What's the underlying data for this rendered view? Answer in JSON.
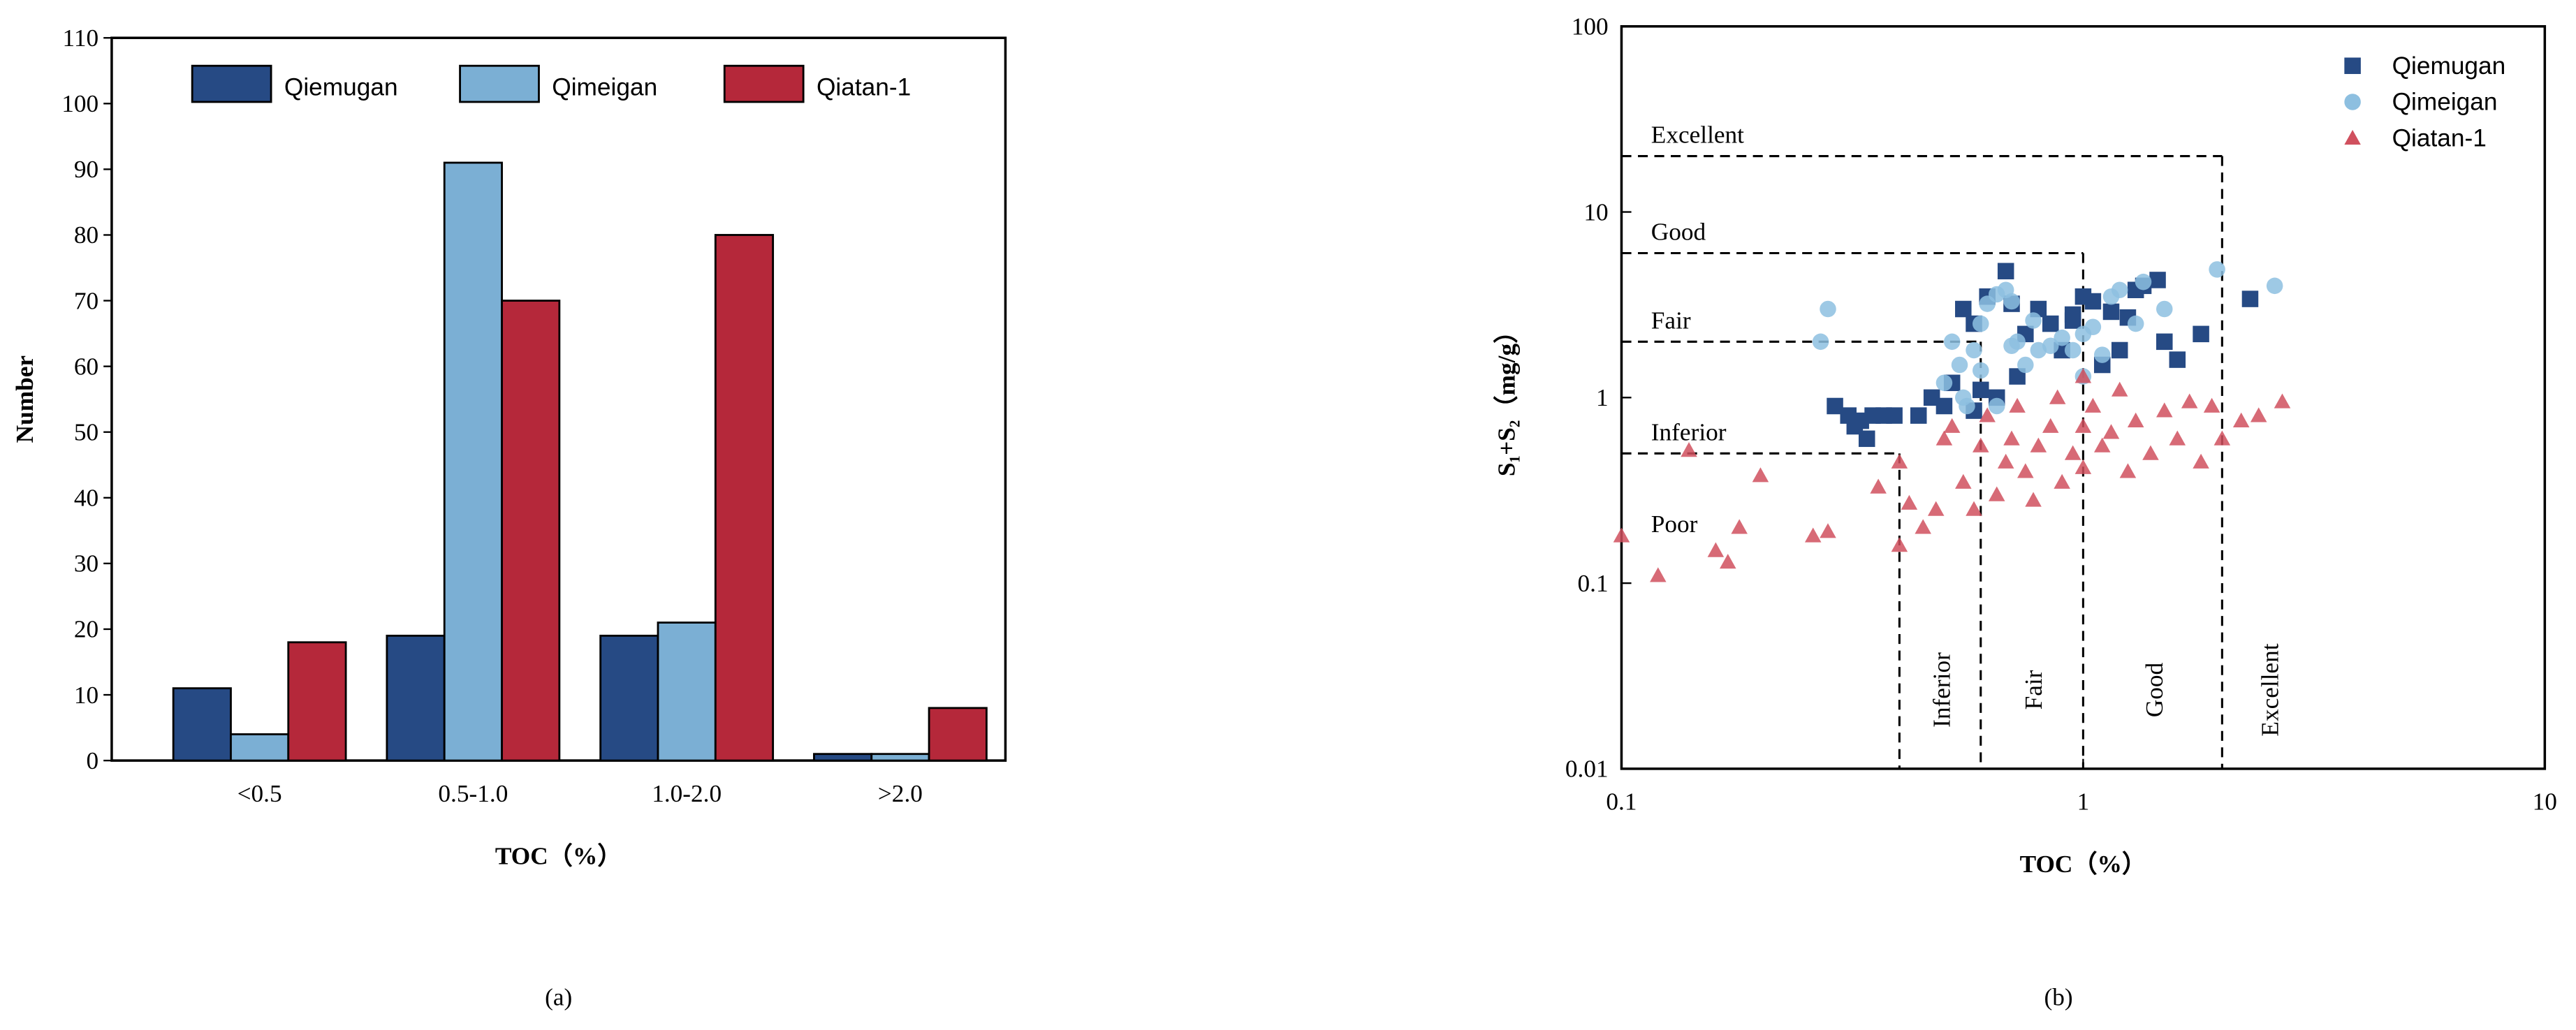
{
  "chart_data": [
    {
      "type": "bar",
      "panel_label": "(a)",
      "ylabel": "Number",
      "xlabel": "TOC（%）",
      "categories": [
        "<0.5",
        "0.5-1.0",
        "1.0-2.0",
        ">2.0"
      ],
      "series": [
        {
          "name": "Qiemugan",
          "color": "#264a84",
          "values": [
            11,
            19,
            19,
            1
          ]
        },
        {
          "name": "Qimeigan",
          "color": "#7bafd4",
          "values": [
            4,
            91,
            21,
            1
          ]
        },
        {
          "name": "Qiatan-1",
          "color": "#b5283a",
          "values": [
            18,
            70,
            80,
            8
          ]
        }
      ],
      "ylim": [
        0,
        110
      ],
      "yticks": [
        0,
        10,
        20,
        30,
        40,
        50,
        60,
        70,
        80,
        90,
        100,
        110
      ],
      "grid": false,
      "legend": "top"
    },
    {
      "type": "scatter",
      "panel_label": "(b)",
      "ylabel": "S₁+S₂（mg/g）",
      "xlabel": "TOC（%）",
      "log_x": true,
      "log_y": true,
      "xlim": [
        0.1,
        10
      ],
      "ylim": [
        0.01,
        100
      ],
      "xticks": [
        0.1,
        1,
        10
      ],
      "yticks": [
        0.01,
        0.1,
        1,
        10,
        100
      ],
      "grid": false,
      "legend": "upper right",
      "thresholds": [
        {
          "x": 0.4,
          "y": 0.5
        },
        {
          "x": 0.6,
          "y": 2
        },
        {
          "x": 1,
          "y": 6
        },
        {
          "x": 2,
          "y": 20
        }
      ],
      "y_class_labels": [
        "Poor",
        "Inferior",
        "Fair",
        "Good",
        "Excellent"
      ],
      "x_class_labels": [
        "Inferior",
        "Fair",
        "Good",
        "Excellent"
      ],
      "series": [
        {
          "name": "Qiemugan",
          "color": "#264a84",
          "marker": "square",
          "x": [
            0.29,
            0.31,
            0.32,
            0.33,
            0.34,
            0.35,
            0.37,
            0.39,
            0.44,
            0.47,
            0.5,
            0.52,
            0.55,
            0.58,
            0.6,
            0.62,
            0.65,
            0.68,
            0.7,
            0.72,
            0.75,
            0.8,
            0.85,
            0.9,
            0.95,
            1.0,
            1.05,
            1.1,
            1.15,
            1.2,
            1.3,
            1.35,
            1.45,
            1.5,
            1.6,
            1.8,
            2.3,
            1.25,
            0.95,
            0.58
          ],
          "values": [
            0.9,
            0.8,
            0.7,
            0.75,
            0.6,
            0.8,
            0.8,
            0.8,
            0.8,
            1.0,
            0.9,
            1.2,
            3.0,
            2.5,
            1.1,
            3.5,
            1.0,
            4.8,
            3.2,
            1.3,
            2.2,
            3.0,
            2.5,
            1.8,
            2.8,
            3.5,
            3.3,
            1.5,
            2.9,
            1.8,
            3.8,
            4.0,
            4.3,
            2.0,
            1.6,
            2.2,
            3.4,
            2.7,
            2.6,
            0.85
          ]
        },
        {
          "name": "Qimeigan",
          "color": "#8dbfe0",
          "marker": "circle",
          "x": [
            0.27,
            0.28,
            0.5,
            0.52,
            0.54,
            0.55,
            0.56,
            0.58,
            0.6,
            0.62,
            0.65,
            0.68,
            0.7,
            0.72,
            0.75,
            0.78,
            0.8,
            0.85,
            0.9,
            0.95,
            1.0,
            1.05,
            1.1,
            1.15,
            1.2,
            1.3,
            1.35,
            1.5,
            1.95,
            2.6,
            0.6,
            0.65,
            0.7,
            1.0
          ],
          "values": [
            2.0,
            3.0,
            1.2,
            2.0,
            1.5,
            1.0,
            0.9,
            1.8,
            2.5,
            3.2,
            3.6,
            3.8,
            3.3,
            2.0,
            1.5,
            2.6,
            1.8,
            1.9,
            2.1,
            1.8,
            2.2,
            2.4,
            1.7,
            3.5,
            3.8,
            2.5,
            4.2,
            3.0,
            4.9,
            4.0,
            1.4,
            0.9,
            1.9,
            1.3
          ]
        },
        {
          "name": "Qiatan-1",
          "color": "#d0505e",
          "marker": "triangle",
          "x": [
            0.1,
            0.12,
            0.14,
            0.16,
            0.17,
            0.18,
            0.2,
            0.26,
            0.28,
            0.36,
            0.4,
            0.4,
            0.42,
            0.45,
            0.48,
            0.5,
            0.52,
            0.55,
            0.58,
            0.6,
            0.62,
            0.65,
            0.68,
            0.7,
            0.72,
            0.75,
            0.8,
            0.85,
            0.88,
            0.9,
            0.95,
            1.0,
            1.0,
            1.05,
            1.1,
            1.15,
            1.2,
            1.25,
            1.3,
            1.4,
            1.5,
            1.6,
            1.7,
            1.8,
            1.9,
            2.0,
            2.2,
            2.4,
            2.7,
            0.78,
            1.0
          ],
          "values": [
            0.18,
            0.11,
            0.52,
            0.15,
            0.13,
            0.2,
            0.38,
            0.18,
            0.19,
            0.33,
            0.16,
            0.45,
            0.27,
            0.2,
            0.25,
            0.6,
            0.7,
            0.35,
            0.25,
            0.55,
            0.8,
            0.3,
            0.45,
            0.6,
            0.9,
            0.4,
            0.55,
            0.7,
            1.0,
            0.35,
            0.5,
            0.42,
            0.7,
            0.9,
            0.55,
            0.65,
            1.1,
            0.4,
            0.75,
            0.5,
            0.85,
            0.6,
            0.95,
            0.45,
            0.9,
            0.6,
            0.75,
            0.8,
            0.95,
            0.28,
            1.3
          ]
        }
      ]
    }
  ]
}
